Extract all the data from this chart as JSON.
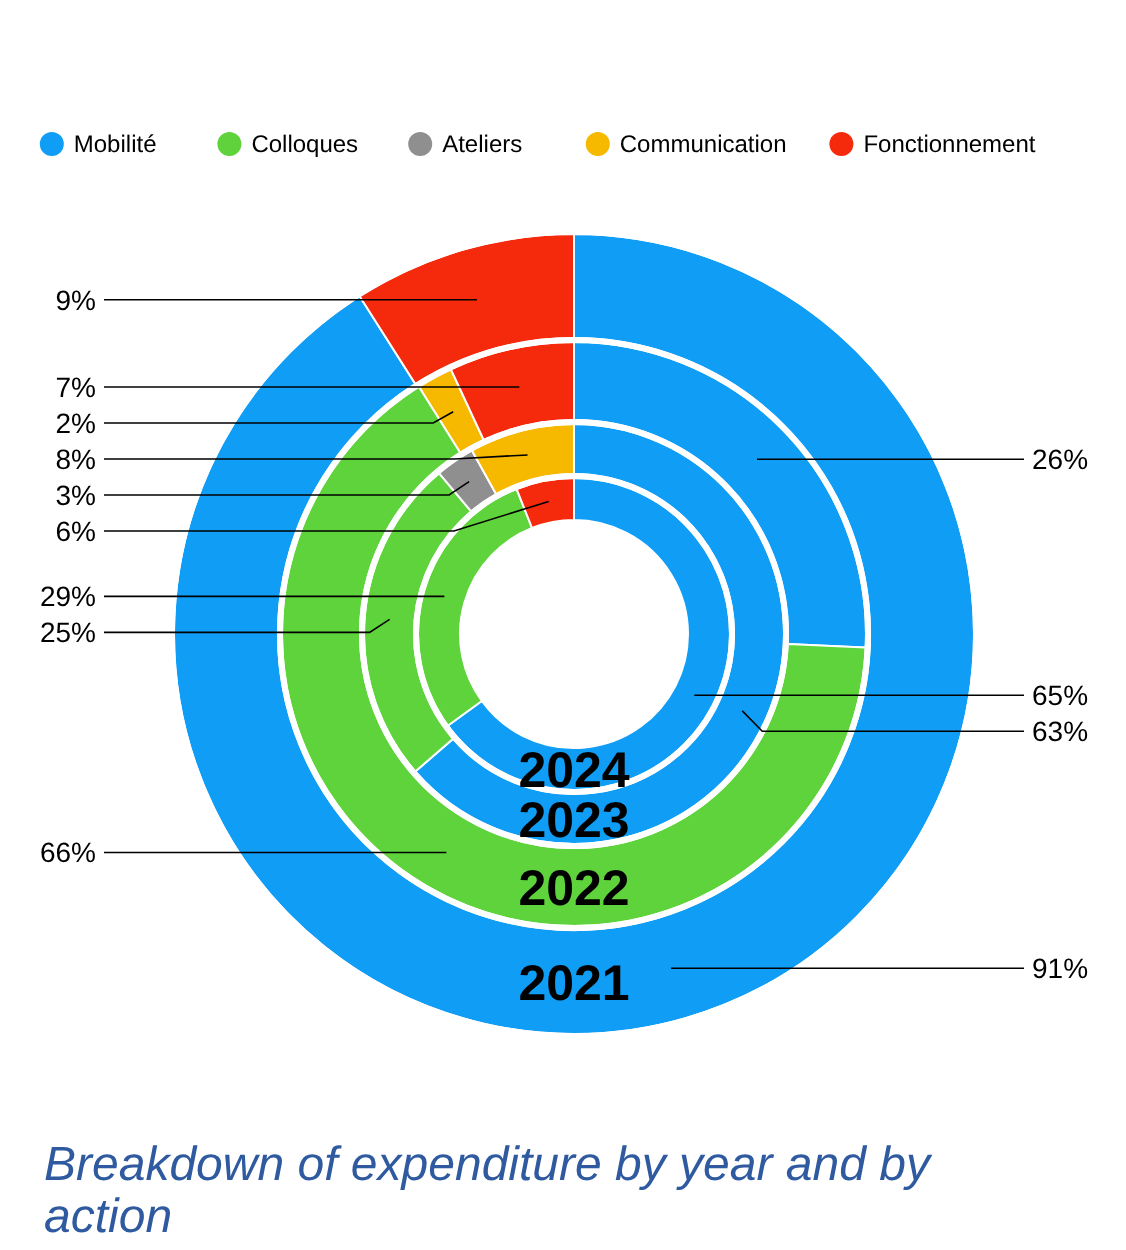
{
  "chart_data": {
    "type": "donut",
    "title": "Breakdown of expenditure by year and by action",
    "categories": [
      "Mobilité",
      "Colloques",
      "Ateliers",
      "Communication",
      "Fonctionnement"
    ],
    "colors": [
      "#0f9df5",
      "#5fd33b",
      "#8f8f8f",
      "#f7b800",
      "#f5290c"
    ],
    "series": [
      {
        "name": "2021",
        "values": [
          91,
          0,
          0,
          0,
          9
        ],
        "value_labels": [
          "91%",
          null,
          null,
          null,
          "9%"
        ]
      },
      {
        "name": "2022",
        "values": [
          26,
          66,
          0,
          2,
          7
        ],
        "value_labels": [
          "26%",
          "66%",
          null,
          "2%",
          "7%"
        ]
      },
      {
        "name": "2023",
        "values": [
          63,
          25,
          3,
          8,
          0
        ],
        "value_labels": [
          "63%",
          "25%",
          "3%",
          "8%",
          null
        ]
      },
      {
        "name": "2024",
        "values": [
          65,
          29,
          0,
          0,
          6
        ],
        "value_labels": [
          "65%",
          "29%",
          null,
          null,
          "6%"
        ]
      }
    ],
    "legend": "top"
  }
}
